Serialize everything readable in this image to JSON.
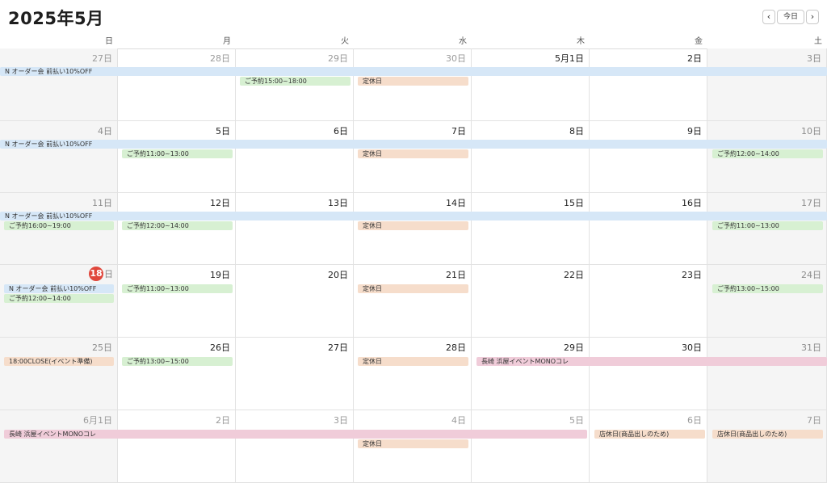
{
  "header": {
    "title": "2025年5月",
    "prev_label": "‹",
    "today_label": "今日",
    "next_label": "›"
  },
  "weekdays": [
    "日",
    "月",
    "火",
    "水",
    "木",
    "金",
    "土"
  ],
  "weeks": [
    [
      "27日",
      "28日",
      "29日",
      "30日",
      "5月1日",
      "2日",
      "3日"
    ],
    [
      "4日",
      "5日",
      "6日",
      "7日",
      "8日",
      "9日",
      "10日"
    ],
    [
      "11日",
      "12日",
      "13日",
      "14日",
      "15日",
      "16日",
      "17日"
    ],
    [
      "18",
      "19日",
      "20日",
      "21日",
      "22日",
      "23日",
      "24日"
    ],
    [
      "25日",
      "26日",
      "27日",
      "28日",
      "29日",
      "30日",
      "31日"
    ],
    [
      "6月1日",
      "2日",
      "3日",
      "4日",
      "5日",
      "6日",
      "7日"
    ]
  ],
  "today": {
    "number": "18",
    "suffix": "日"
  },
  "events": {
    "w0_sale": "N オーダー会 前払い10%OFF",
    "w0_tue": "ご予約15:00~18:00",
    "w0_wed": "定休日",
    "w1_sale": "N オーダー会 前払い10%OFF",
    "w1_mon": "ご予約11:00~13:00",
    "w1_wed": "定休日",
    "w1_sat": "ご予約12:00~14:00",
    "w2_sale": "N オーダー会 前払い10%OFF",
    "w2_sun": "ご予約16:00~19:00",
    "w2_mon": "ご予約12:00~14:00",
    "w2_wed": "定休日",
    "w2_sat": "ご予約11:00~13:00",
    "w3_sale": "N オーダー会 前払い10%OFF",
    "w3_sun": "ご予約12:00~14:00",
    "w3_mon": "ご予約11:00~13:00",
    "w3_wed": "定休日",
    "w3_sat": "ご予約13:00~15:00",
    "w4_sun": "18:00CLOSE(イベント準備)",
    "w4_mon": "ご予約13:00~15:00",
    "w4_wed": "定休日",
    "w4_event": "長崎 浜屋イベントMONOコレ",
    "w5_event": "長崎 浜屋イベントMONOコレ",
    "w5_wed": "定休日",
    "w5_fri": "店休日(商品出しのため)",
    "w5_sat": "店休日(商品出しのため)"
  },
  "colors": {
    "sale": "#d6e7f7",
    "reservation": "#d7f0d2",
    "closed": "#f6ddcb",
    "event": "#f0ccd9",
    "today": "#e0473c"
  }
}
